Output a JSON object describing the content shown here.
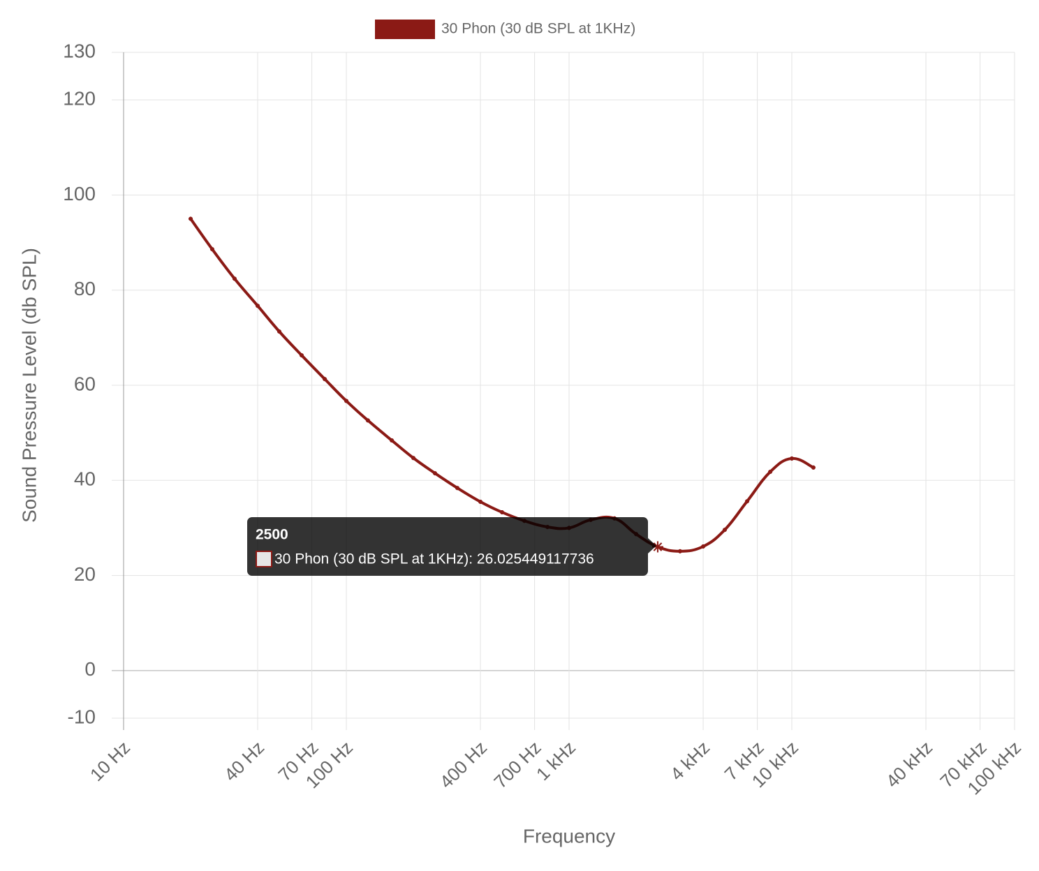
{
  "chart_data": {
    "type": "line",
    "x_label": "Frequency",
    "y_label": "Sound Pressure Level (db SPL)",
    "log_x": true,
    "grid": true,
    "legend": "top",
    "x": [
      20,
      25,
      31.5,
      40,
      50,
      63,
      80,
      100,
      125,
      160,
      200,
      250,
      315,
      400,
      500,
      630,
      800,
      1000,
      1250,
      1600,
      2000,
      2500,
      3150,
      4000,
      5000,
      6300,
      8000,
      10000,
      12500
    ],
    "series": [
      {
        "name": "30 Phon (30 dB SPL at 1KHz)",
        "color": "#8b1a15",
        "values": [
          95.0,
          88.6,
          82.4,
          76.7,
          71.3,
          66.3,
          61.3,
          56.7,
          52.6,
          48.4,
          44.7,
          41.5,
          38.4,
          35.5,
          33.3,
          31.5,
          30.2,
          30.0,
          31.7,
          32.0,
          28.7,
          26.025449117736,
          25.1,
          26.1,
          29.6,
          35.6,
          41.8,
          44.6,
          42.7
        ]
      }
    ],
    "xlim": [
      10,
      100000
    ],
    "xticks": [
      {
        "value": 10,
        "label": "10 Hz"
      },
      {
        "value": 40,
        "label": "40 Hz"
      },
      {
        "value": 70,
        "label": "70 Hz"
      },
      {
        "value": 100,
        "label": "100 Hz"
      },
      {
        "value": 400,
        "label": "400 Hz"
      },
      {
        "value": 700,
        "label": "700 Hz"
      },
      {
        "value": 1000,
        "label": "1 kHz"
      },
      {
        "value": 4000,
        "label": "4 kHz"
      },
      {
        "value": 7000,
        "label": "7 kHz"
      },
      {
        "value": 10000,
        "label": "10 kHz"
      },
      {
        "value": 40000,
        "label": "40 kHz"
      },
      {
        "value": 70000,
        "label": "70 kHz"
      },
      {
        "value": 100000,
        "label": "100 kHz"
      }
    ],
    "ylim": [
      -10,
      130
    ],
    "yticks": [
      -10,
      0,
      20,
      40,
      60,
      80,
      100,
      120,
      130
    ],
    "tooltip": {
      "index": 21,
      "title": "2500",
      "text": "30 Phon (30 dB SPL at 1KHz): 26.025449117736"
    }
  }
}
